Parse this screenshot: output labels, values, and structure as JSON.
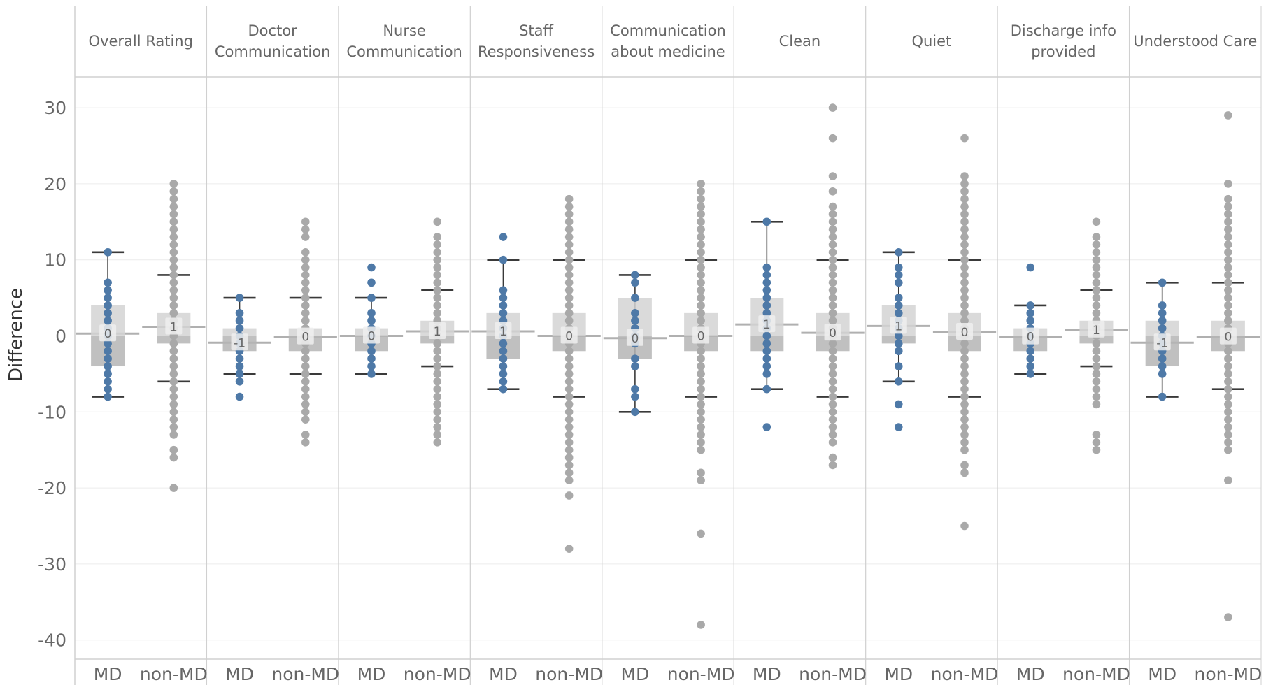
{
  "chart_data": {
    "type": "boxplot",
    "ylabel": "Difference",
    "ylim": [
      -42,
      34
    ],
    "yticks": [
      30,
      20,
      10,
      0,
      -10,
      -20,
      -30,
      -40
    ],
    "groups_per_panel": [
      "MD",
      "non-MD"
    ],
    "colors": {
      "MD": "#4e79a7",
      "non-MD": "#a9a9a9"
    },
    "panels": [
      {
        "title": "Overall Rating",
        "MD": {
          "median_label": "0",
          "mean": 0.3,
          "q1": -4,
          "q3": 4,
          "whisker_low": -8,
          "whisker_high": 11,
          "points": [
            11,
            7,
            6,
            5,
            4,
            3,
            2,
            1,
            0,
            -1,
            -2,
            -3,
            -4,
            -5,
            -6,
            -7,
            -8
          ]
        },
        "non-MD": {
          "median_label": "1",
          "mean": 1.2,
          "q1": -1,
          "q3": 3,
          "whisker_low": -6,
          "whisker_high": 8,
          "points": [
            20,
            19,
            18,
            17,
            16,
            15,
            14,
            13,
            12,
            11,
            10,
            9,
            8,
            7,
            6,
            5,
            4,
            3,
            2,
            1,
            0,
            -1,
            -2,
            -3,
            -4,
            -5,
            -6,
            -7,
            -8,
            -9,
            -10,
            -11,
            -12,
            -13,
            -15,
            -16,
            -20
          ]
        }
      },
      {
        "title": "Doctor Communication",
        "MD": {
          "median_label": "-1",
          "mean": -0.9,
          "q1": -2,
          "q3": 1,
          "whisker_low": -5,
          "whisker_high": 5,
          "points": [
            5,
            3,
            2,
            1,
            0,
            -1,
            -2,
            -3,
            -4,
            -5,
            -6,
            -8
          ]
        },
        "non-MD": {
          "median_label": "0",
          "mean": -0.1,
          "q1": -2,
          "q3": 1,
          "whisker_low": -5,
          "whisker_high": 5,
          "points": [
            15,
            14,
            13,
            11,
            10,
            9,
            8,
            7,
            6,
            5,
            4,
            3,
            2,
            1,
            0,
            -1,
            -2,
            -3,
            -4,
            -5,
            -6,
            -7,
            -8,
            -9,
            -10,
            -11,
            -13,
            -14
          ]
        }
      },
      {
        "title": "Nurse Communication",
        "MD": {
          "median_label": "0",
          "mean": 0,
          "q1": -2,
          "q3": 1,
          "whisker_low": -5,
          "whisker_high": 5,
          "points": [
            9,
            7,
            5,
            3,
            2,
            1,
            0,
            -1,
            -2,
            -3,
            -4,
            -5
          ]
        },
        "non-MD": {
          "median_label": "1",
          "mean": 0.6,
          "q1": -1,
          "q3": 2,
          "whisker_low": -4,
          "whisker_high": 6,
          "points": [
            15,
            13,
            12,
            11,
            10,
            9,
            8,
            7,
            6,
            5,
            4,
            3,
            2,
            1,
            0,
            -1,
            -2,
            -3,
            -4,
            -5,
            -6,
            -7,
            -8,
            -9,
            -10,
            -11,
            -12,
            -13,
            -14
          ]
        }
      },
      {
        "title": "Staff Responsiveness",
        "MD": {
          "median_label": "1",
          "mean": 0.6,
          "q1": -3,
          "q3": 3,
          "whisker_low": -7,
          "whisker_high": 10,
          "points": [
            13,
            10,
            6,
            5,
            4,
            3,
            2,
            1,
            0,
            -1,
            -2,
            -3,
            -4,
            -5,
            -6,
            -7
          ]
        },
        "non-MD": {
          "median_label": "0",
          "mean": 0,
          "q1": -2,
          "q3": 3,
          "whisker_low": -8,
          "whisker_high": 10,
          "points": [
            18,
            17,
            16,
            15,
            14,
            13,
            12,
            11,
            10,
            9,
            8,
            7,
            6,
            5,
            4,
            3,
            2,
            1,
            0,
            -1,
            -2,
            -3,
            -4,
            -5,
            -6,
            -7,
            -8,
            -9,
            -10,
            -11,
            -12,
            -13,
            -14,
            -15,
            -16,
            -17,
            -18,
            -19,
            -21,
            -28
          ]
        }
      },
      {
        "title": "Communication about medicine",
        "MD": {
          "median_label": "0",
          "mean": -0.3,
          "q1": -3,
          "q3": 5,
          "whisker_low": -10,
          "whisker_high": 8,
          "points": [
            8,
            7,
            5,
            3,
            2,
            1,
            0,
            -1,
            -3,
            -4,
            -7,
            -8,
            -10
          ]
        },
        "non-MD": {
          "median_label": "0",
          "mean": 0,
          "q1": -2,
          "q3": 3,
          "whisker_low": -8,
          "whisker_high": 10,
          "points": [
            20,
            19,
            18,
            17,
            16,
            15,
            14,
            13,
            12,
            11,
            10,
            9,
            8,
            7,
            6,
            5,
            4,
            3,
            2,
            1,
            0,
            -1,
            -2,
            -3,
            -4,
            -5,
            -6,
            -7,
            -8,
            -9,
            -10,
            -11,
            -12,
            -13,
            -14,
            -15,
            -18,
            -19,
            -26,
            -38
          ]
        }
      },
      {
        "title": "Clean",
        "MD": {
          "median_label": "1",
          "mean": 1.5,
          "q1": -2,
          "q3": 5,
          "whisker_low": -7,
          "whisker_high": 15,
          "points": [
            15,
            9,
            8,
            7,
            6,
            5,
            4,
            3,
            2,
            1,
            0,
            -1,
            -2,
            -3,
            -4,
            -5,
            -7,
            -12
          ]
        },
        "non-MD": {
          "median_label": "0",
          "mean": 0.4,
          "q1": -2,
          "q3": 3,
          "whisker_low": -8,
          "whisker_high": 10,
          "points": [
            30,
            26,
            21,
            19,
            17,
            16,
            15,
            14,
            13,
            12,
            11,
            10,
            9,
            8,
            7,
            6,
            5,
            4,
            3,
            2,
            1,
            0,
            -1,
            -2,
            -3,
            -4,
            -5,
            -6,
            -7,
            -8,
            -9,
            -10,
            -11,
            -12,
            -13,
            -14,
            -16,
            -17
          ]
        }
      },
      {
        "title": "Quiet",
        "MD": {
          "median_label": "1",
          "mean": 1.3,
          "q1": -1,
          "q3": 4,
          "whisker_low": -6,
          "whisker_high": 11,
          "points": [
            11,
            9,
            8,
            7,
            5,
            4,
            3,
            2,
            1,
            0,
            -1,
            -2,
            -4,
            -6,
            -9,
            -12
          ]
        },
        "non-MD": {
          "median_label": "0",
          "mean": 0.5,
          "q1": -2,
          "q3": 3,
          "whisker_low": -8,
          "whisker_high": 10,
          "points": [
            26,
            21,
            20,
            19,
            18,
            17,
            16,
            15,
            14,
            13,
            12,
            11,
            10,
            9,
            8,
            7,
            6,
            5,
            4,
            3,
            2,
            1,
            0,
            -1,
            -2,
            -3,
            -4,
            -5,
            -6,
            -7,
            -8,
            -9,
            -10,
            -11,
            -12,
            -13,
            -14,
            -15,
            -17,
            -18,
            -25
          ]
        }
      },
      {
        "title": "Discharge info provided",
        "MD": {
          "median_label": "0",
          "mean": -0.1,
          "q1": -2,
          "q3": 1,
          "whisker_low": -5,
          "whisker_high": 4,
          "points": [
            9,
            4,
            3,
            2,
            1,
            0,
            -1,
            -2,
            -3,
            -4,
            -5
          ]
        },
        "non-MD": {
          "median_label": "1",
          "mean": 0.8,
          "q1": -1,
          "q3": 2,
          "whisker_low": -4,
          "whisker_high": 6,
          "points": [
            15,
            13,
            12,
            11,
            10,
            9,
            8,
            7,
            6,
            5,
            4,
            3,
            2,
            1,
            0,
            -1,
            -2,
            -3,
            -4,
            -5,
            -6,
            -7,
            -8,
            -9,
            -13,
            -14,
            -15
          ]
        }
      },
      {
        "title": "Understood Care",
        "MD": {
          "median_label": "-1",
          "mean": -0.9,
          "q1": -4,
          "q3": 2,
          "whisker_low": -8,
          "whisker_high": 7,
          "points": [
            7,
            4,
            3,
            2,
            1,
            0,
            -1,
            -2,
            -3,
            -4,
            -5,
            -8
          ]
        },
        "non-MD": {
          "median_label": "0",
          "mean": -0.1,
          "q1": -2,
          "q3": 2,
          "whisker_low": -7,
          "whisker_high": 7,
          "points": [
            29,
            20,
            18,
            17,
            16,
            15,
            14,
            13,
            12,
            11,
            10,
            9,
            8,
            7,
            6,
            5,
            4,
            3,
            2,
            1,
            0,
            -1,
            -2,
            -3,
            -4,
            -5,
            -6,
            -7,
            -8,
            -9,
            -10,
            -11,
            -12,
            -13,
            -14,
            -15,
            -19,
            -37
          ]
        }
      }
    ]
  }
}
